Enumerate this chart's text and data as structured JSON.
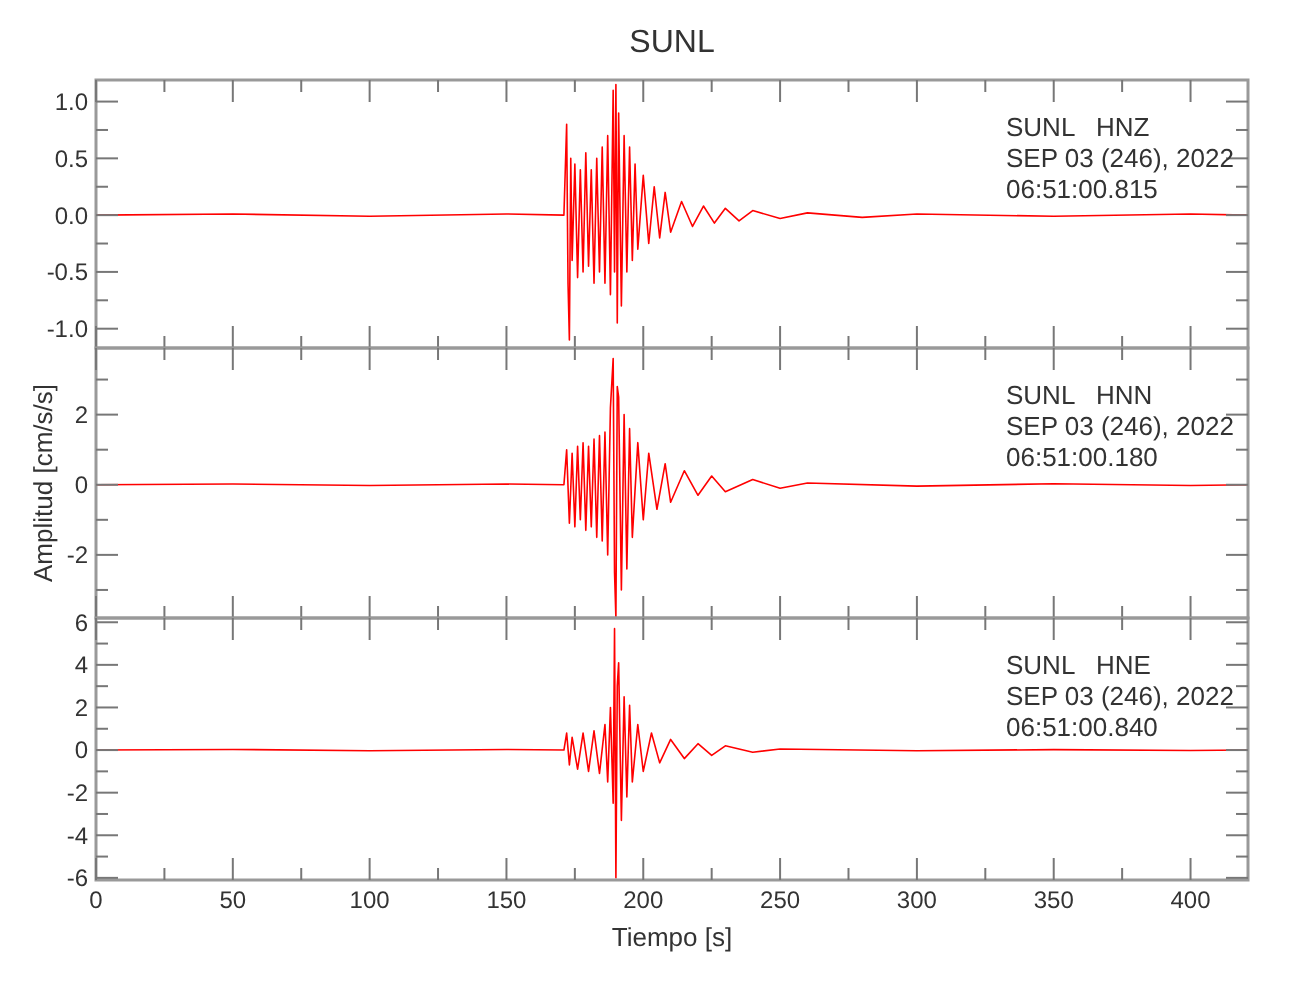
{
  "chart_data": [
    {
      "type": "line",
      "title": "SUNL",
      "tick_labels": "y",
      "xlim": [
        0,
        421
      ],
      "ylim": [
        -1.17,
        1.19
      ],
      "xticks": [
        0,
        {
          "value": 25,
          "label": null
        },
        50,
        {
          "value": 75,
          "label": null
        },
        100,
        {
          "value": 125,
          "label": null
        },
        150,
        {
          "value": 175,
          "label": null
        },
        200,
        {
          "value": 225,
          "label": null
        },
        250,
        {
          "value": 275,
          "label": null
        },
        300,
        {
          "value": 325,
          "label": null
        },
        350,
        {
          "value": 375,
          "label": null
        },
        400
      ],
      "yticks": [
        {
          "value": -1,
          "label": "-1.0"
        },
        {
          "value": -0.75,
          "label": null
        },
        -0.5,
        {
          "value": -0.25,
          "label": null
        },
        {
          "value": 0,
          "label": "0.0"
        },
        {
          "value": 0.25,
          "label": null
        },
        0.5,
        {
          "value": 0.75,
          "label": null
        },
        {
          "value": 1,
          "label": "1.0"
        }
      ],
      "annotations": [
        "SUNL   HNZ",
        "SEP 03 (246), 2022",
        "06:51:00.815"
      ],
      "series": [
        {
          "color": "#ff0000",
          "x": [
            0,
            50,
            100,
            150,
            171,
            172,
            172.5,
            173,
            173.5,
            174,
            175,
            176,
            177,
            178,
            179,
            180,
            181,
            182,
            183,
            184,
            185,
            186,
            187,
            188,
            189,
            189.5,
            190,
            190.5,
            191,
            192,
            193,
            194,
            195,
            196,
            197,
            198,
            200,
            202,
            204,
            206,
            208,
            210,
            214,
            218,
            222,
            226,
            230,
            235,
            240,
            250,
            260,
            280,
            300,
            350,
            400,
            421
          ],
          "values": [
            0,
            0.01,
            -0.01,
            0.01,
            0,
            0.8,
            -0.6,
            -1.1,
            0.5,
            -0.4,
            0.45,
            -0.55,
            0.4,
            -0.5,
            0.55,
            -0.45,
            0.4,
            -0.6,
            0.5,
            -0.5,
            0.6,
            -0.6,
            0.7,
            -0.7,
            1.1,
            -0.5,
            1.15,
            -0.95,
            0.9,
            -0.8,
            0.7,
            -0.5,
            0.6,
            -0.4,
            0.45,
            -0.3,
            0.35,
            -0.25,
            0.25,
            -0.2,
            0.2,
            -0.15,
            0.12,
            -0.1,
            0.08,
            -0.07,
            0.06,
            -0.05,
            0.04,
            -0.03,
            0.02,
            -0.02,
            0.01,
            -0.01,
            0.01,
            0
          ]
        }
      ]
    },
    {
      "type": "line",
      "ylabel": "Amplitud [cm/s/s]",
      "tick_labels": "y",
      "xlim": [
        0,
        421
      ],
      "ylim": [
        -3.8,
        3.9
      ],
      "xticks": [
        0,
        {
          "value": 25,
          "label": null
        },
        50,
        {
          "value": 75,
          "label": null
        },
        100,
        {
          "value": 125,
          "label": null
        },
        150,
        {
          "value": 175,
          "label": null
        },
        200,
        {
          "value": 225,
          "label": null
        },
        250,
        {
          "value": 275,
          "label": null
        },
        300,
        {
          "value": 325,
          "label": null
        },
        350,
        {
          "value": 375,
          "label": null
        },
        400
      ],
      "yticks": [
        {
          "value": -3,
          "label": null
        },
        -2,
        {
          "value": -1,
          "label": null
        },
        0,
        {
          "value": 1,
          "label": null
        },
        2,
        {
          "value": 3,
          "label": null
        }
      ],
      "annotations": [
        "SUNL   HNN",
        "SEP 03 (246), 2022",
        "06:51:00.180"
      ],
      "series": [
        {
          "color": "#ff0000",
          "x": [
            0,
            50,
            100,
            150,
            171,
            172,
            173,
            174,
            175,
            176,
            177,
            178,
            179,
            180,
            181,
            182,
            183,
            184,
            185,
            186,
            187,
            188,
            189,
            189.5,
            190,
            190.5,
            191,
            192,
            193,
            194,
            195,
            196,
            198,
            200,
            202,
            205,
            208,
            210,
            215,
            220,
            225,
            230,
            240,
            250,
            260,
            300,
            350,
            400,
            421
          ],
          "values": [
            0,
            0.02,
            -0.02,
            0.02,
            0,
            1,
            -1.1,
            0.9,
            -1.2,
            1.1,
            -1,
            1.2,
            -1.3,
            1.1,
            -1.2,
            1.3,
            -1.5,
            1.4,
            -1.6,
            1.5,
            -2,
            2.2,
            3.6,
            -2.5,
            -3.8,
            2.8,
            2.5,
            -3,
            2,
            -2.4,
            1.6,
            -1.5,
            1.2,
            -1,
            0.9,
            -0.7,
            0.6,
            -0.5,
            0.4,
            -0.3,
            0.25,
            -0.2,
            0.15,
            -0.1,
            0.05,
            -0.04,
            0.03,
            -0.02,
            0
          ]
        }
      ]
    },
    {
      "type": "line",
      "xlabel": "Tiempo [s]",
      "xlim": [
        0,
        421
      ],
      "ylim": [
        -6.1,
        6.2
      ],
      "xticks": [
        0,
        {
          "value": 25,
          "label": null
        },
        50,
        {
          "value": 75,
          "label": null
        },
        100,
        {
          "value": 125,
          "label": null
        },
        150,
        {
          "value": 175,
          "label": null
        },
        200,
        {
          "value": 225,
          "label": null
        },
        250,
        {
          "value": 275,
          "label": null
        },
        300,
        {
          "value": 325,
          "label": null
        },
        350,
        {
          "value": 375,
          "label": null
        },
        400
      ],
      "yticks": [
        -6,
        {
          "value": -5,
          "label": null
        },
        -4,
        {
          "value": -3,
          "label": null
        },
        -2,
        {
          "value": -1,
          "label": null
        },
        0,
        {
          "value": 1,
          "label": null
        },
        2,
        {
          "value": 3,
          "label": null
        },
        4,
        {
          "value": 5,
          "label": null
        },
        6
      ],
      "annotations": [
        "SUNL   HNE",
        "SEP 03 (246), 2022",
        "06:51:00.840"
      ],
      "series": [
        {
          "color": "#ff0000",
          "x": [
            0,
            50,
            100,
            150,
            171,
            172,
            173,
            174,
            176,
            178,
            180,
            182,
            184,
            186,
            187,
            188,
            189,
            189.5,
            190,
            190.5,
            191,
            192,
            193,
            194,
            195,
            196,
            198,
            200,
            203,
            206,
            210,
            215,
            220,
            225,
            230,
            240,
            250,
            300,
            350,
            400,
            421
          ],
          "values": [
            0,
            0.03,
            -0.03,
            0.03,
            0,
            0.8,
            -0.7,
            0.6,
            -0.9,
            0.8,
            -1,
            0.9,
            -1.1,
            1.2,
            -1.5,
            2,
            -2.5,
            5.7,
            -6,
            3,
            4.1,
            -3.3,
            2.5,
            -2.2,
            2.1,
            -1.5,
            1.2,
            -1,
            0.8,
            -0.6,
            0.5,
            -0.4,
            0.3,
            -0.25,
            0.2,
            -0.1,
            0.05,
            -0.03,
            0.02,
            -0.02,
            0
          ]
        }
      ]
    }
  ]
}
